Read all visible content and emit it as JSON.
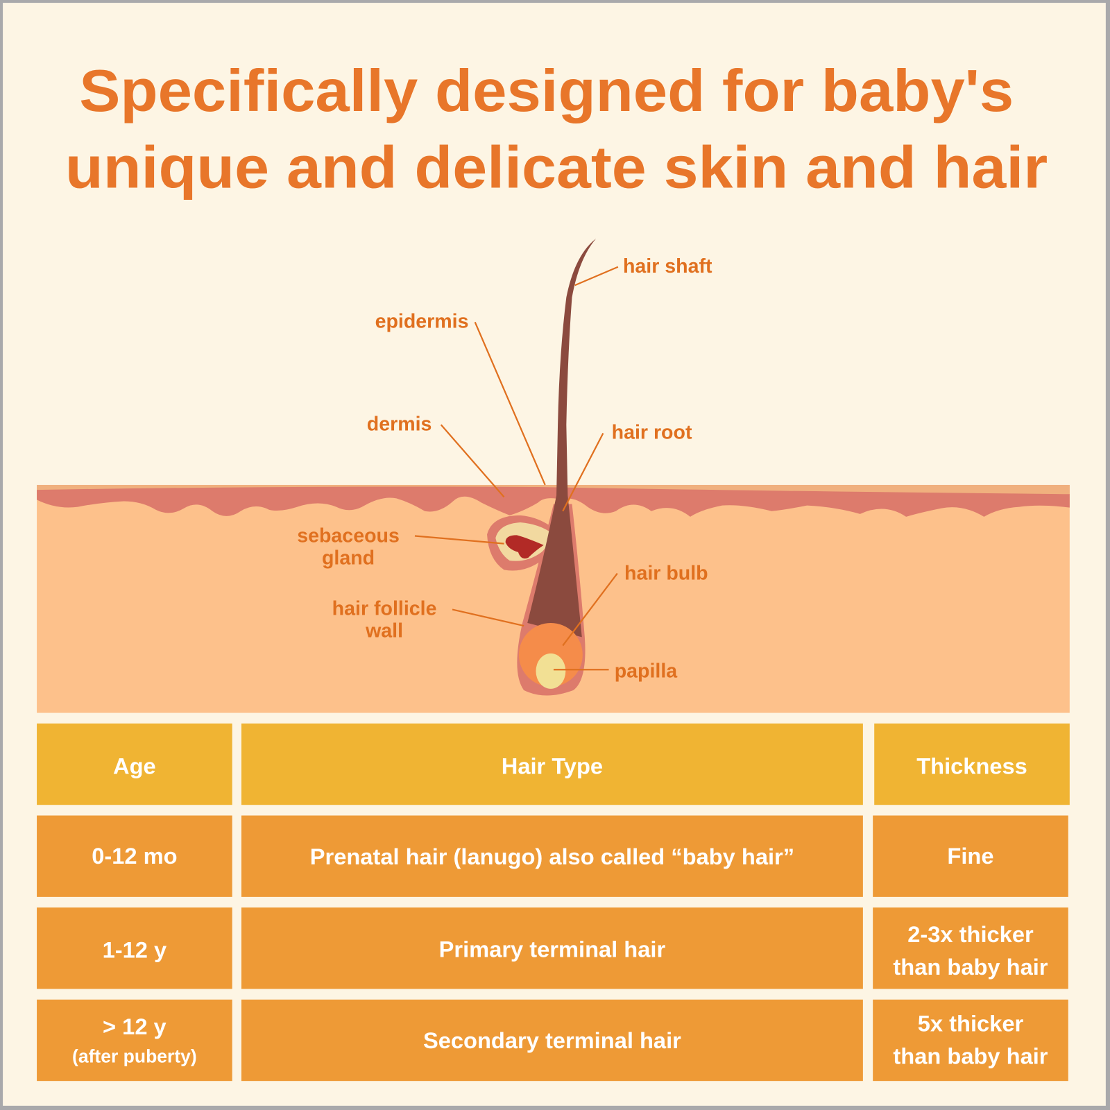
{
  "title": {
    "line1": "Specifically designed for baby's",
    "line2": "unique and delicate skin and hair"
  },
  "diagram": {
    "labels": {
      "hair_shaft": "hair shaft",
      "epidermis": "epidermis",
      "dermis": "dermis",
      "hair_root": "hair root",
      "sebaceous_gland_1": "sebaceous",
      "sebaceous_gland_2": "gland",
      "hair_bulb": "hair bulb",
      "hair_follicle_wall_1": "hair follicle",
      "hair_follicle_wall_2": "wall",
      "papilla": "papilla"
    }
  },
  "table": {
    "headers": [
      "Age",
      "Hair Type",
      "Thickness"
    ],
    "rows": [
      {
        "age": "0-12 mo",
        "age_note": "",
        "type": "Prenatal hair (lanugo) also called “baby hair”",
        "thick1": "Fine",
        "thick2": ""
      },
      {
        "age": "1-12 y",
        "age_note": "",
        "type": "Primary terminal hair",
        "thick1": "2-3x thicker",
        "thick2": "than baby hair"
      },
      {
        "age": "> 12 y",
        "age_note": "(after puberty)",
        "type": "Secondary terminal hair",
        "thick1": "5x thicker",
        "thick2": "than baby hair"
      }
    ]
  },
  "colors": {
    "background": "#fdf5e4",
    "title": "#e8762a",
    "header_cell": "#f0b433",
    "row_cell": "#ee9a36",
    "skin": "#fdc18b",
    "dermis": "#dd7b6c",
    "hair": "#8b4a3e"
  }
}
